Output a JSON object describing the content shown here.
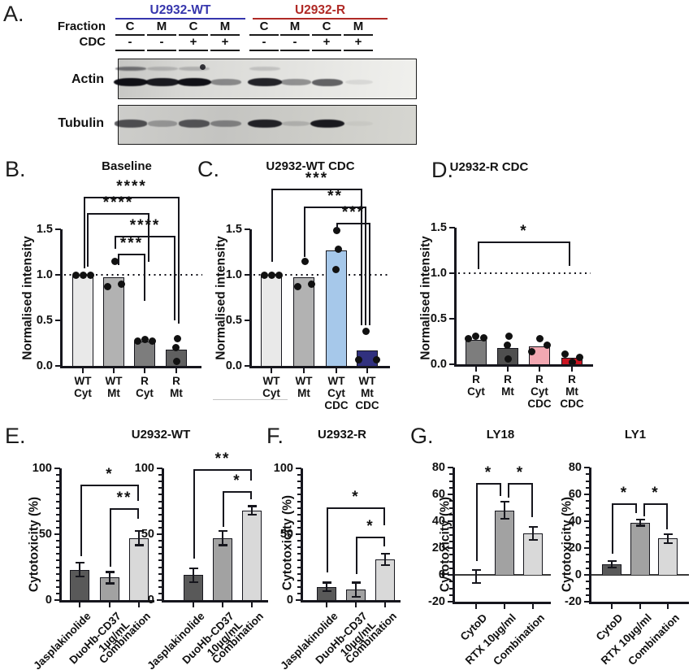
{
  "panels": {
    "a": {
      "label": "A."
    },
    "b": {
      "label": "B."
    },
    "c": {
      "label": "C."
    },
    "d": {
      "label": "D."
    },
    "e": {
      "label": "E."
    },
    "f": {
      "label": "F."
    },
    "g": {
      "label": "G."
    }
  },
  "panel_a": {
    "groups": [
      {
        "name": "U2932-WT",
        "color": "#3636ad"
      },
      {
        "name": "U2932-R",
        "color": "#b02a26"
      }
    ],
    "fraction_label": "Fraction",
    "cdc_label": "CDC",
    "fraction": [
      "C",
      "M",
      "C",
      "M",
      "C",
      "M",
      "C",
      "M"
    ],
    "cdc": [
      "-",
      "-",
      "+",
      "+",
      "-",
      "-",
      "+",
      "+"
    ],
    "blots": [
      {
        "name": "Actin",
        "band_intensity": [
          0.97,
          0.92,
          0.97,
          0.4,
          0.88,
          0.38,
          0.6,
          0.08
        ],
        "upper_band_intensity": [
          0.5,
          0.18,
          0.2,
          0,
          0.15,
          0,
          0,
          0
        ]
      },
      {
        "name": "Tubulin",
        "band_intensity": [
          0.65,
          0.28,
          0.62,
          0.38,
          0.88,
          0.15,
          0.92,
          0.04
        ],
        "upper_band_intensity": [
          0,
          0,
          0,
          0,
          0,
          0,
          0,
          0
        ]
      }
    ]
  },
  "chart_data": [
    {
      "id": "B",
      "type": "bar",
      "title": "Baseline",
      "ylabel": "Normalised intensity",
      "ylim": [
        0,
        1.5
      ],
      "yticks": [
        0,
        0.5,
        1,
        1.5
      ],
      "ytick_labels": [
        "0.0",
        "0.5",
        "1.0",
        "1.5"
      ],
      "reference_line": 1.0,
      "categories": [
        [
          "WT",
          "Cyt"
        ],
        [
          "WT",
          "Mt"
        ],
        [
          "R",
          "Cyt"
        ],
        [
          "R",
          "Mt"
        ]
      ],
      "values": [
        1.0,
        0.97,
        0.27,
        0.18
      ],
      "bar_colors": [
        "#e9e9e9",
        "#b2b2b2",
        "#7d7d7d",
        "#606060"
      ],
      "points": [
        [
          1.0,
          1.0,
          1.0
        ],
        [
          0.87,
          1.15,
          0.9
        ],
        [
          0.27,
          0.29,
          0.27
        ],
        [
          0.3,
          0.2,
          0.05
        ]
      ],
      "significance": [
        {
          "label": "****",
          "between": [
            "WT Cyt",
            "R Mt"
          ]
        },
        {
          "label": "****",
          "between": [
            "WT Cyt",
            "R Cyt"
          ]
        },
        {
          "label": "****",
          "between": [
            "WT Mt",
            "R Mt"
          ]
        },
        {
          "label": "***",
          "between": [
            "WT Mt",
            "R Cyt"
          ]
        }
      ]
    },
    {
      "id": "C",
      "type": "bar",
      "title": "U2932-WT CDC",
      "ylabel": "Normalised intensity",
      "ylim": [
        0,
        1.5
      ],
      "yticks": [
        0,
        0.5,
        1,
        1.5
      ],
      "ytick_labels": [
        "0.0",
        "0.5",
        "1.0",
        "1.5"
      ],
      "reference_line": 1.0,
      "categories": [
        [
          "WT",
          "Cyt"
        ],
        [
          "WT",
          "Mt"
        ],
        [
          "WT",
          "Cyt",
          "CDC"
        ],
        [
          "WT",
          "Mt",
          "CDC"
        ]
      ],
      "values": [
        1.0,
        0.97,
        1.27,
        0.17
      ],
      "bar_colors": [
        "#e9e9e9",
        "#b2b2b2",
        "#a6c8ea",
        "#31317f"
      ],
      "points": [
        [
          1.0,
          1.0,
          1.0
        ],
        [
          0.87,
          1.15,
          0.9
        ],
        [
          1.49,
          1.28,
          1.06
        ],
        [
          0.38,
          0.07,
          0.07
        ]
      ],
      "significance": [
        {
          "label": "***",
          "between": [
            "WT Cyt",
            "WT Mt CDC"
          ]
        },
        {
          "label": "**",
          "between": [
            "WT Mt",
            "WT Mt CDC"
          ]
        },
        {
          "label": "***",
          "between": [
            "WT Cyt CDC",
            "WT Mt CDC"
          ]
        }
      ]
    },
    {
      "id": "D",
      "type": "bar",
      "title": "U2932-R CDC",
      "ylabel": "Normalised intensity",
      "ylim": [
        0,
        1.5
      ],
      "yticks": [
        0,
        0.5,
        1,
        1.5
      ],
      "ytick_labels": [
        "0.0",
        "0.5",
        "1.0",
        "1.5"
      ],
      "reference_line": 1.0,
      "categories": [
        [
          "R",
          "Cyt"
        ],
        [
          "R",
          "Mt"
        ],
        [
          "R",
          "Cyt",
          "CDC"
        ],
        [
          "R",
          "Mt",
          "CDC"
        ]
      ],
      "values": [
        0.27,
        0.18,
        0.2,
        0.07
      ],
      "bar_colors": [
        "#7d7d7d",
        "#4f4f4f",
        "#f2a8b2",
        "#cb1522"
      ],
      "points": [
        [
          0.28,
          0.31,
          0.29
        ],
        [
          0.31,
          0.21,
          0.06
        ],
        [
          0.14,
          0.28,
          0.21
        ],
        [
          0.11,
          0.02,
          0.08
        ]
      ],
      "significance": [
        {
          "label": "*",
          "between": [
            "R Cyt",
            "R Mt CDC"
          ]
        }
      ]
    },
    {
      "id": "E1",
      "type": "bar",
      "title": "U2932-WT",
      "ylabel": "Cytotoxicity (%)",
      "ylim": [
        0,
        100
      ],
      "yticks": [
        0,
        50,
        100
      ],
      "ytick_labels": [
        "0",
        "50",
        "100"
      ],
      "categories": [
        "Jasplakinolide",
        "DuoHb-CD37\n1µg/mL",
        "Combination"
      ],
      "values": [
        23,
        17,
        47
      ],
      "errors": [
        6,
        5,
        6
      ],
      "bar_colors": [
        "#595959",
        "#a2a2a2",
        "#d9d9d9"
      ],
      "significance": [
        {
          "label": "*",
          "between": [
            "Jasplakinolide",
            "Combination"
          ]
        },
        {
          "label": "**",
          "between": [
            "DuoHb-CD37 1µg/mL",
            "Combination"
          ]
        }
      ]
    },
    {
      "id": "E2",
      "type": "bar",
      "title": "",
      "ylabel": "",
      "ylim": [
        0,
        100
      ],
      "yticks": [
        0,
        50,
        100
      ],
      "ytick_labels": [
        "0",
        "50",
        "100"
      ],
      "categories": [
        "Jasplakinolide",
        "DuoHb-CD37\n10µg/mL",
        "Combination"
      ],
      "values": [
        19,
        47,
        68
      ],
      "errors": [
        6,
        6,
        4
      ],
      "bar_colors": [
        "#595959",
        "#a2a2a2",
        "#d9d9d9"
      ],
      "significance": [
        {
          "label": "**",
          "between": [
            "Jasplakinolide",
            "Combination"
          ]
        },
        {
          "label": "*",
          "between": [
            "DuoHb-CD37 10µg/mL",
            "Combination"
          ]
        }
      ]
    },
    {
      "id": "F",
      "type": "bar",
      "title": "U2932-R",
      "ylabel": "Cytotoxicity (%)",
      "ylim": [
        0,
        100
      ],
      "yticks": [
        0,
        50,
        100
      ],
      "ytick_labels": [
        "0",
        "50",
        "100"
      ],
      "categories": [
        "Jasplakinolide",
        "DuoHb-CD37\n10µg/mL",
        "Combination"
      ],
      "values": [
        10,
        8,
        31
      ],
      "errors": [
        4,
        6,
        5
      ],
      "bar_colors": [
        "#595959",
        "#a2a2a2",
        "#d9d9d9"
      ],
      "significance": [
        {
          "label": "*",
          "between": [
            "Jasplakinolide",
            "Combination"
          ]
        },
        {
          "label": "*",
          "between": [
            "DuoHb-CD37 10µg/mL",
            "Combination"
          ]
        }
      ]
    },
    {
      "id": "G1",
      "type": "bar",
      "title": "LY18",
      "ylabel": "Cytotoxicity (%)",
      "ylim": [
        -20,
        80
      ],
      "yticks": [
        -20,
        0,
        20,
        40,
        60,
        80
      ],
      "ytick_labels": [
        "-20",
        "0",
        "20",
        "40",
        "60",
        "80"
      ],
      "categories": [
        "CytoD",
        "RTX 10µg/ml",
        "Combination"
      ],
      "values": [
        -1,
        48,
        31
      ],
      "errors": [
        5.5,
        7,
        5.5
      ],
      "bar_colors": [
        "#595959",
        "#a2a2a2",
        "#d9d9d9"
      ],
      "significance": [
        {
          "label": "*",
          "between": [
            "CytoD",
            "RTX 10µg/ml"
          ]
        },
        {
          "label": "*",
          "between": [
            "RTX 10µg/ml",
            "Combination"
          ]
        }
      ]
    },
    {
      "id": "G2",
      "type": "bar",
      "title": "LY1",
      "ylabel": "Cytotoxicity (%)",
      "ylim": [
        -20,
        80
      ],
      "yticks": [
        -20,
        0,
        20,
        40,
        60,
        80
      ],
      "ytick_labels": [
        "-20",
        "0",
        "20",
        "40",
        "60",
        "80"
      ],
      "categories": [
        "CytoD",
        "RTX 10µg/ml",
        "Combination"
      ],
      "values": [
        8,
        39,
        27
      ],
      "errors": [
        3,
        3,
        4
      ],
      "bar_colors": [
        "#595959",
        "#a2a2a2",
        "#d9d9d9"
      ],
      "significance": [
        {
          "label": "*",
          "between": [
            "CytoD",
            "RTX 10µg/ml"
          ]
        },
        {
          "label": "*",
          "between": [
            "RTX 10µg/ml",
            "Combination"
          ]
        }
      ]
    }
  ]
}
